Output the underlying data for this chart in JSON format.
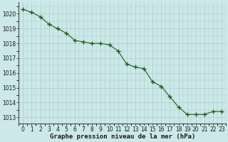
{
  "x": [
    0,
    1,
    2,
    3,
    4,
    5,
    6,
    7,
    8,
    9,
    10,
    11,
    12,
    13,
    14,
    15,
    16,
    17,
    18,
    19,
    20,
    21,
    22,
    23
  ],
  "y": [
    1020.3,
    1020.1,
    1019.8,
    1019.3,
    1019.0,
    1018.7,
    1018.2,
    1018.1,
    1018.0,
    1018.0,
    1017.9,
    1017.5,
    1016.6,
    1016.4,
    1016.3,
    1015.4,
    1015.1,
    1014.4,
    1013.7,
    1013.2,
    1013.2,
    1013.2,
    1013.4,
    1013.4
  ],
  "line_color": "#1e5c1e",
  "marker": "+",
  "marker_size": 4.0,
  "bg_color": "#cce8e8",
  "grid_color": "#aacccc",
  "ylabel_ticks": [
    1013,
    1014,
    1015,
    1016,
    1017,
    1018,
    1019,
    1020
  ],
  "ylim": [
    1012.6,
    1020.8
  ],
  "xlim": [
    -0.5,
    23.5
  ],
  "xlabel": "Graphe pression niveau de la mer (hPa)",
  "xlabel_fontsize": 6.5,
  "tick_fontsize": 5.5
}
